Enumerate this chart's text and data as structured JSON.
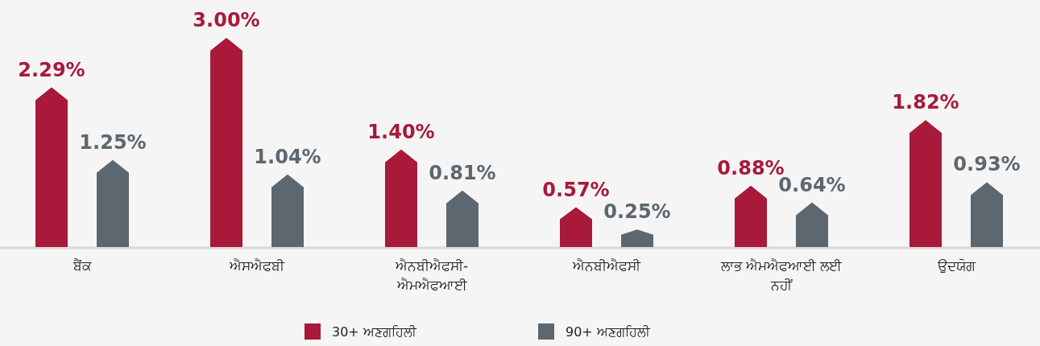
{
  "chart_data": {
    "type": "bar",
    "categories": [
      "ਬੈਂਕ",
      "ਐਸਐਫਬੀ",
      "ਐਨਬੀਐਫਸੀ-ਐਮਐਫਆਈ",
      "ਐਨਬੀਐਫਸੀ",
      "ਲਾਭ ਐਮਐਫਆਈ ਲਈ ਨਹੀਂ",
      "ਉਦਯੋਗ"
    ],
    "series": [
      {
        "name": "30+ ਅਣਗਹਿਲੀ",
        "color": "#a8193a",
        "values": [
          2.29,
          3.0,
          1.4,
          0.57,
          0.88,
          1.82
        ],
        "value_labels": [
          "2.29%",
          "3.00%",
          "1.40%",
          "0.57%",
          "0.88%",
          "1.82%"
        ]
      },
      {
        "name": "90+ ਅਣਗਹਿਲੀ",
        "color": "#5c6770",
        "values": [
          1.25,
          1.04,
          0.81,
          0.25,
          0.64,
          0.93
        ],
        "value_labels": [
          "1.25%",
          "1.04%",
          "0.81%",
          "0.25%",
          "0.64%",
          "0.93%"
        ]
      }
    ],
    "legend": "bottom"
  }
}
